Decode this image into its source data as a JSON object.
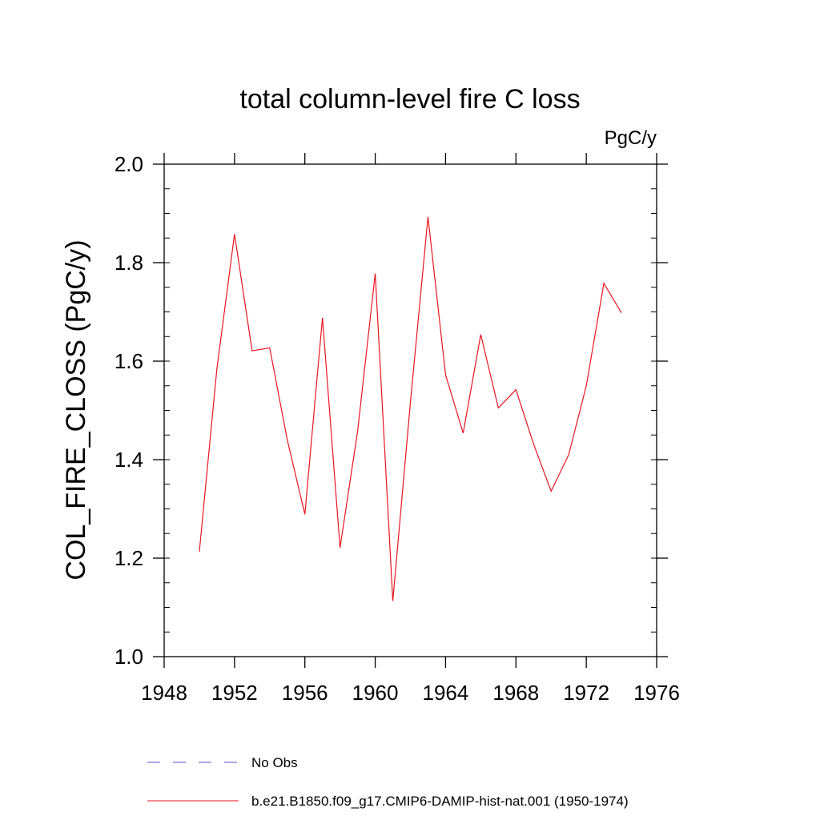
{
  "chart_data": {
    "type": "line",
    "title": "total column-level fire C loss",
    "units": "PgC/y",
    "ylabel": "COL_FIRE_CLOSS  (PgC/y)",
    "xlabel": "",
    "xlim": [
      1948,
      1976
    ],
    "ylim": [
      1.0,
      2.0
    ],
    "x_ticks": [
      1948,
      1952,
      1956,
      1960,
      1964,
      1968,
      1972,
      1976
    ],
    "y_ticks": [
      "1.0",
      "1.2",
      "1.4",
      "1.6",
      "1.8",
      "2.0"
    ],
    "grid": false,
    "legend_position": "bottom",
    "series": [
      {
        "name": "No Obs",
        "color": "#5a4fcf",
        "dash": "dashed",
        "x": [],
        "values": []
      },
      {
        "name": "b.e21.B1850.f09_g17.CMIP6-DAMIP-hist-nat.001 (1950-1974)",
        "color": "#e8141e",
        "dash": "solid",
        "x": [
          1950,
          1951,
          1952,
          1953,
          1954,
          1955,
          1956,
          1957,
          1958,
          1959,
          1960,
          1961,
          1962,
          1963,
          1964,
          1965,
          1966,
          1967,
          1968,
          1969,
          1970,
          1971,
          1972,
          1973,
          1974
        ],
        "values": [
          1.213,
          1.585,
          1.858,
          1.621,
          1.627,
          1.44,
          1.289,
          1.688,
          1.221,
          1.458,
          1.778,
          1.113,
          1.516,
          1.893,
          1.572,
          1.454,
          1.654,
          1.505,
          1.542,
          1.432,
          1.336,
          1.41,
          1.55,
          1.758,
          1.698
        ]
      }
    ]
  }
}
